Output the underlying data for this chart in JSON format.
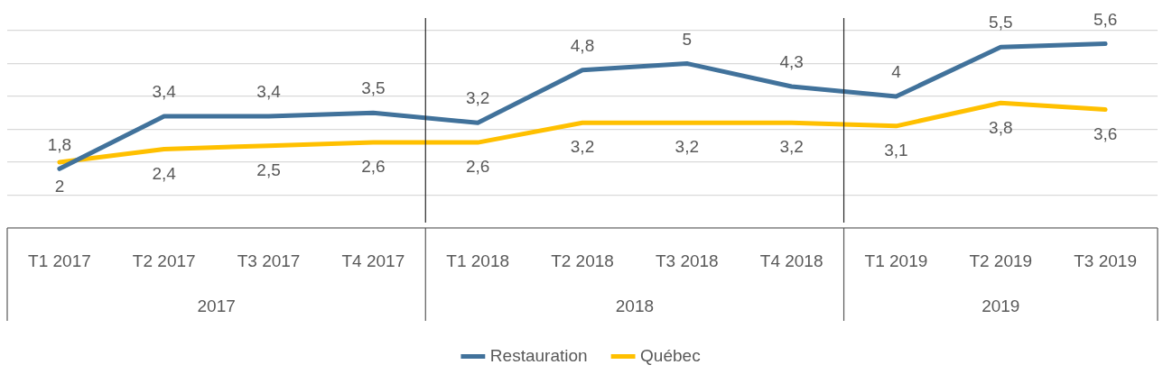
{
  "chart_data": {
    "type": "line",
    "categories": [
      "T1 2017",
      "T2 2017",
      "T3 2017",
      "T4 2017",
      "T1 2018",
      "T2 2018",
      "T3 2018",
      "T4 2018",
      "T1 2019",
      "T2 2019",
      "T3 2019"
    ],
    "series": [
      {
        "name": "Restauration",
        "color": "#41729b",
        "values": [
          1.8,
          3.4,
          3.4,
          3.5,
          3.2,
          4.8,
          5,
          4.3,
          4,
          5.5,
          5.6
        ],
        "value_labels": [
          "1,8",
          "3,4",
          "3,4",
          "3,5",
          "3,2",
          "4,8",
          "5",
          "4,3",
          "4",
          "5,5",
          "5,6"
        ]
      },
      {
        "name": "Québec",
        "color": "#ffc000",
        "values": [
          2,
          2.4,
          2.5,
          2.6,
          2.6,
          3.2,
          3.2,
          3.2,
          3.1,
          3.8,
          3.6
        ],
        "value_labels": [
          "2",
          "2,4",
          "2,5",
          "2,6",
          "2,6",
          "3,2",
          "3,2",
          "3,2",
          "3,1",
          "3,8",
          "3,6"
        ]
      }
    ],
    "ylim": [
      0,
      6
    ],
    "yticks": [
      {
        "value": 0,
        "label": null
      },
      {
        "value": 1,
        "label": null
      },
      {
        "value": 2,
        "label": null
      },
      {
        "value": 3,
        "label": null
      },
      {
        "value": 4,
        "label": null
      },
      {
        "value": 5,
        "label": null
      },
      {
        "value": 6,
        "label": null
      }
    ],
    "tick_labels": "x",
    "grid": "y",
    "legend": "bottom",
    "marker": "none",
    "line_style": "solid",
    "annotations": [
      "2017",
      "2018",
      "2019"
    ]
  }
}
